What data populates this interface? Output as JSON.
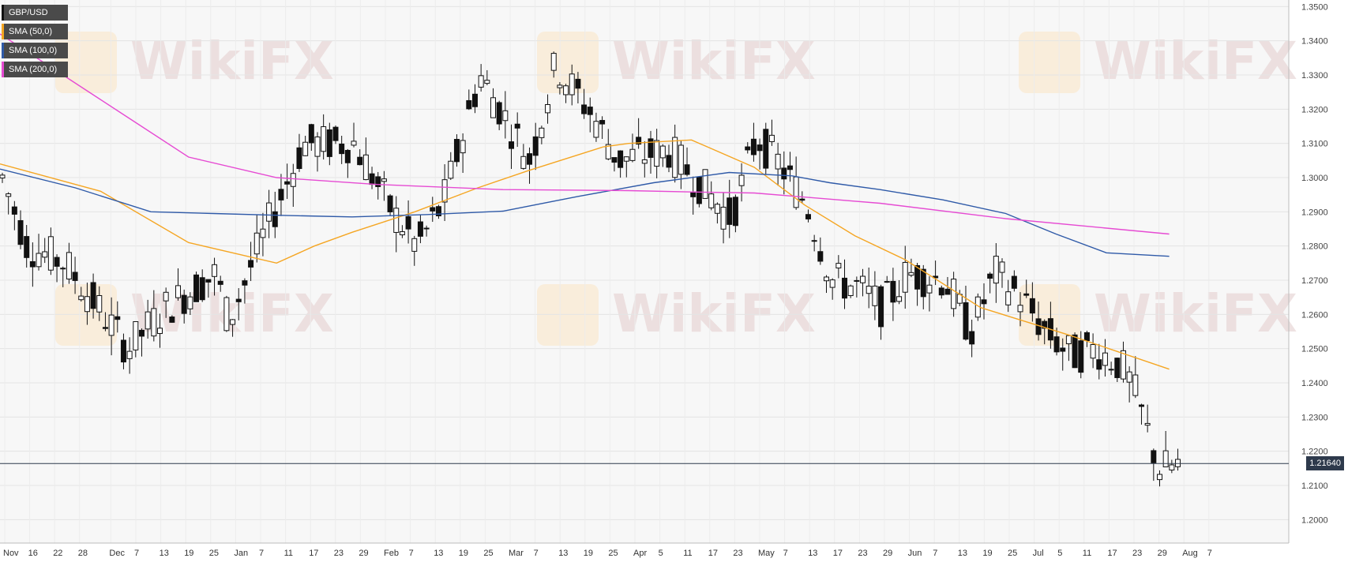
{
  "legend": [
    {
      "label": "GBP/USD",
      "color": "#111111"
    },
    {
      "label": "SMA (50,0)",
      "color": "#f5a623"
    },
    {
      "label": "SMA (100,0)",
      "color": "#2f5aa8"
    },
    {
      "label": "SMA (200,0)",
      "color": "#e64bd3"
    }
  ],
  "watermark": "WikiFX",
  "last_price_label": "1.21640",
  "chart_data": {
    "type": "candlestick",
    "symbol": "GBP/USD",
    "ylim": [
      1.195,
      1.351
    ],
    "y_ticks": [
      "1.3500",
      "1.3400",
      "1.3300",
      "1.3200",
      "1.3100",
      "1.3000",
      "1.2900",
      "1.2800",
      "1.2700",
      "1.2600",
      "1.2500",
      "1.2400",
      "1.2300",
      "1.2200",
      "1.2100",
      "1.2000"
    ],
    "x_ticks": [
      "Nov",
      "16",
      "22",
      "28",
      "Dec",
      "7",
      "13",
      "19",
      "25",
      "Jan",
      "7",
      "11",
      "17",
      "23",
      "29",
      "Feb",
      "7",
      "13",
      "19",
      "25",
      "Mar",
      "7",
      "13",
      "19",
      "25",
      "Apr",
      "5",
      "11",
      "17",
      "23",
      "May",
      "7",
      "13",
      "17",
      "23",
      "29",
      "Jun",
      "7",
      "13",
      "19",
      "25",
      "Jul",
      "5",
      "11",
      "17",
      "23",
      "29",
      "Aug",
      "7"
    ],
    "last_price": 1.2164,
    "grid": true,
    "moving_averages": [
      {
        "name": "SMA (50,0)",
        "color": "#f5a623",
        "x": [
          0,
          0.08,
          0.15,
          0.22,
          0.25,
          0.28,
          0.33,
          0.38,
          0.42,
          0.48,
          0.5,
          0.55,
          0.6,
          0.64,
          0.68,
          0.72,
          0.78,
          0.85,
          0.93
        ],
        "y": [
          1.304,
          1.296,
          1.281,
          1.275,
          1.28,
          1.284,
          1.29,
          1.297,
          1.302,
          1.309,
          1.31,
          1.311,
          1.303,
          1.292,
          1.283,
          1.276,
          1.262,
          1.254,
          1.244
        ]
      },
      {
        "name": "SMA (100,0)",
        "color": "#2f5aa8",
        "x": [
          0,
          0.06,
          0.12,
          0.17,
          0.22,
          0.28,
          0.34,
          0.4,
          0.46,
          0.52,
          0.58,
          0.63,
          0.66,
          0.7,
          0.75,
          0.8,
          0.84,
          0.88,
          0.93
        ],
        "y": [
          1.3025,
          1.297,
          1.29,
          1.2895,
          1.289,
          1.2885,
          1.2892,
          1.2902,
          1.2945,
          1.2985,
          1.3015,
          1.3005,
          1.2985,
          1.2965,
          1.2935,
          1.2895,
          1.2835,
          1.278,
          1.277
        ]
      },
      {
        "name": "SMA (200,0)",
        "color": "#e64bd3",
        "x": [
          0,
          0.05,
          0.1,
          0.15,
          0.22,
          0.3,
          0.4,
          0.5,
          0.55,
          0.6,
          0.7,
          0.8,
          0.93
        ],
        "y": [
          1.342,
          1.33,
          1.318,
          1.306,
          1.3,
          1.298,
          1.2965,
          1.2962,
          1.2958,
          1.2955,
          1.2925,
          1.288,
          1.2835
        ]
      }
    ]
  }
}
